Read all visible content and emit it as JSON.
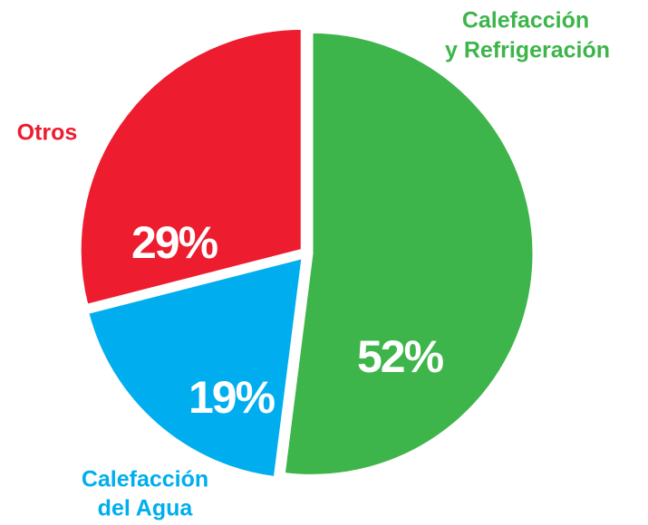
{
  "chart_data": {
    "type": "pie",
    "categories": [
      [
        "Calefacción",
        "y Refrigeración"
      ],
      [
        "Calefacción",
        "del Agua"
      ],
      [
        "Otros"
      ]
    ],
    "values": [
      52,
      19,
      29
    ],
    "value_labels": [
      "52%",
      "19%",
      "29%"
    ],
    "colors": [
      "#3db54a",
      "#00aeef",
      "#ed1c2e"
    ]
  }
}
